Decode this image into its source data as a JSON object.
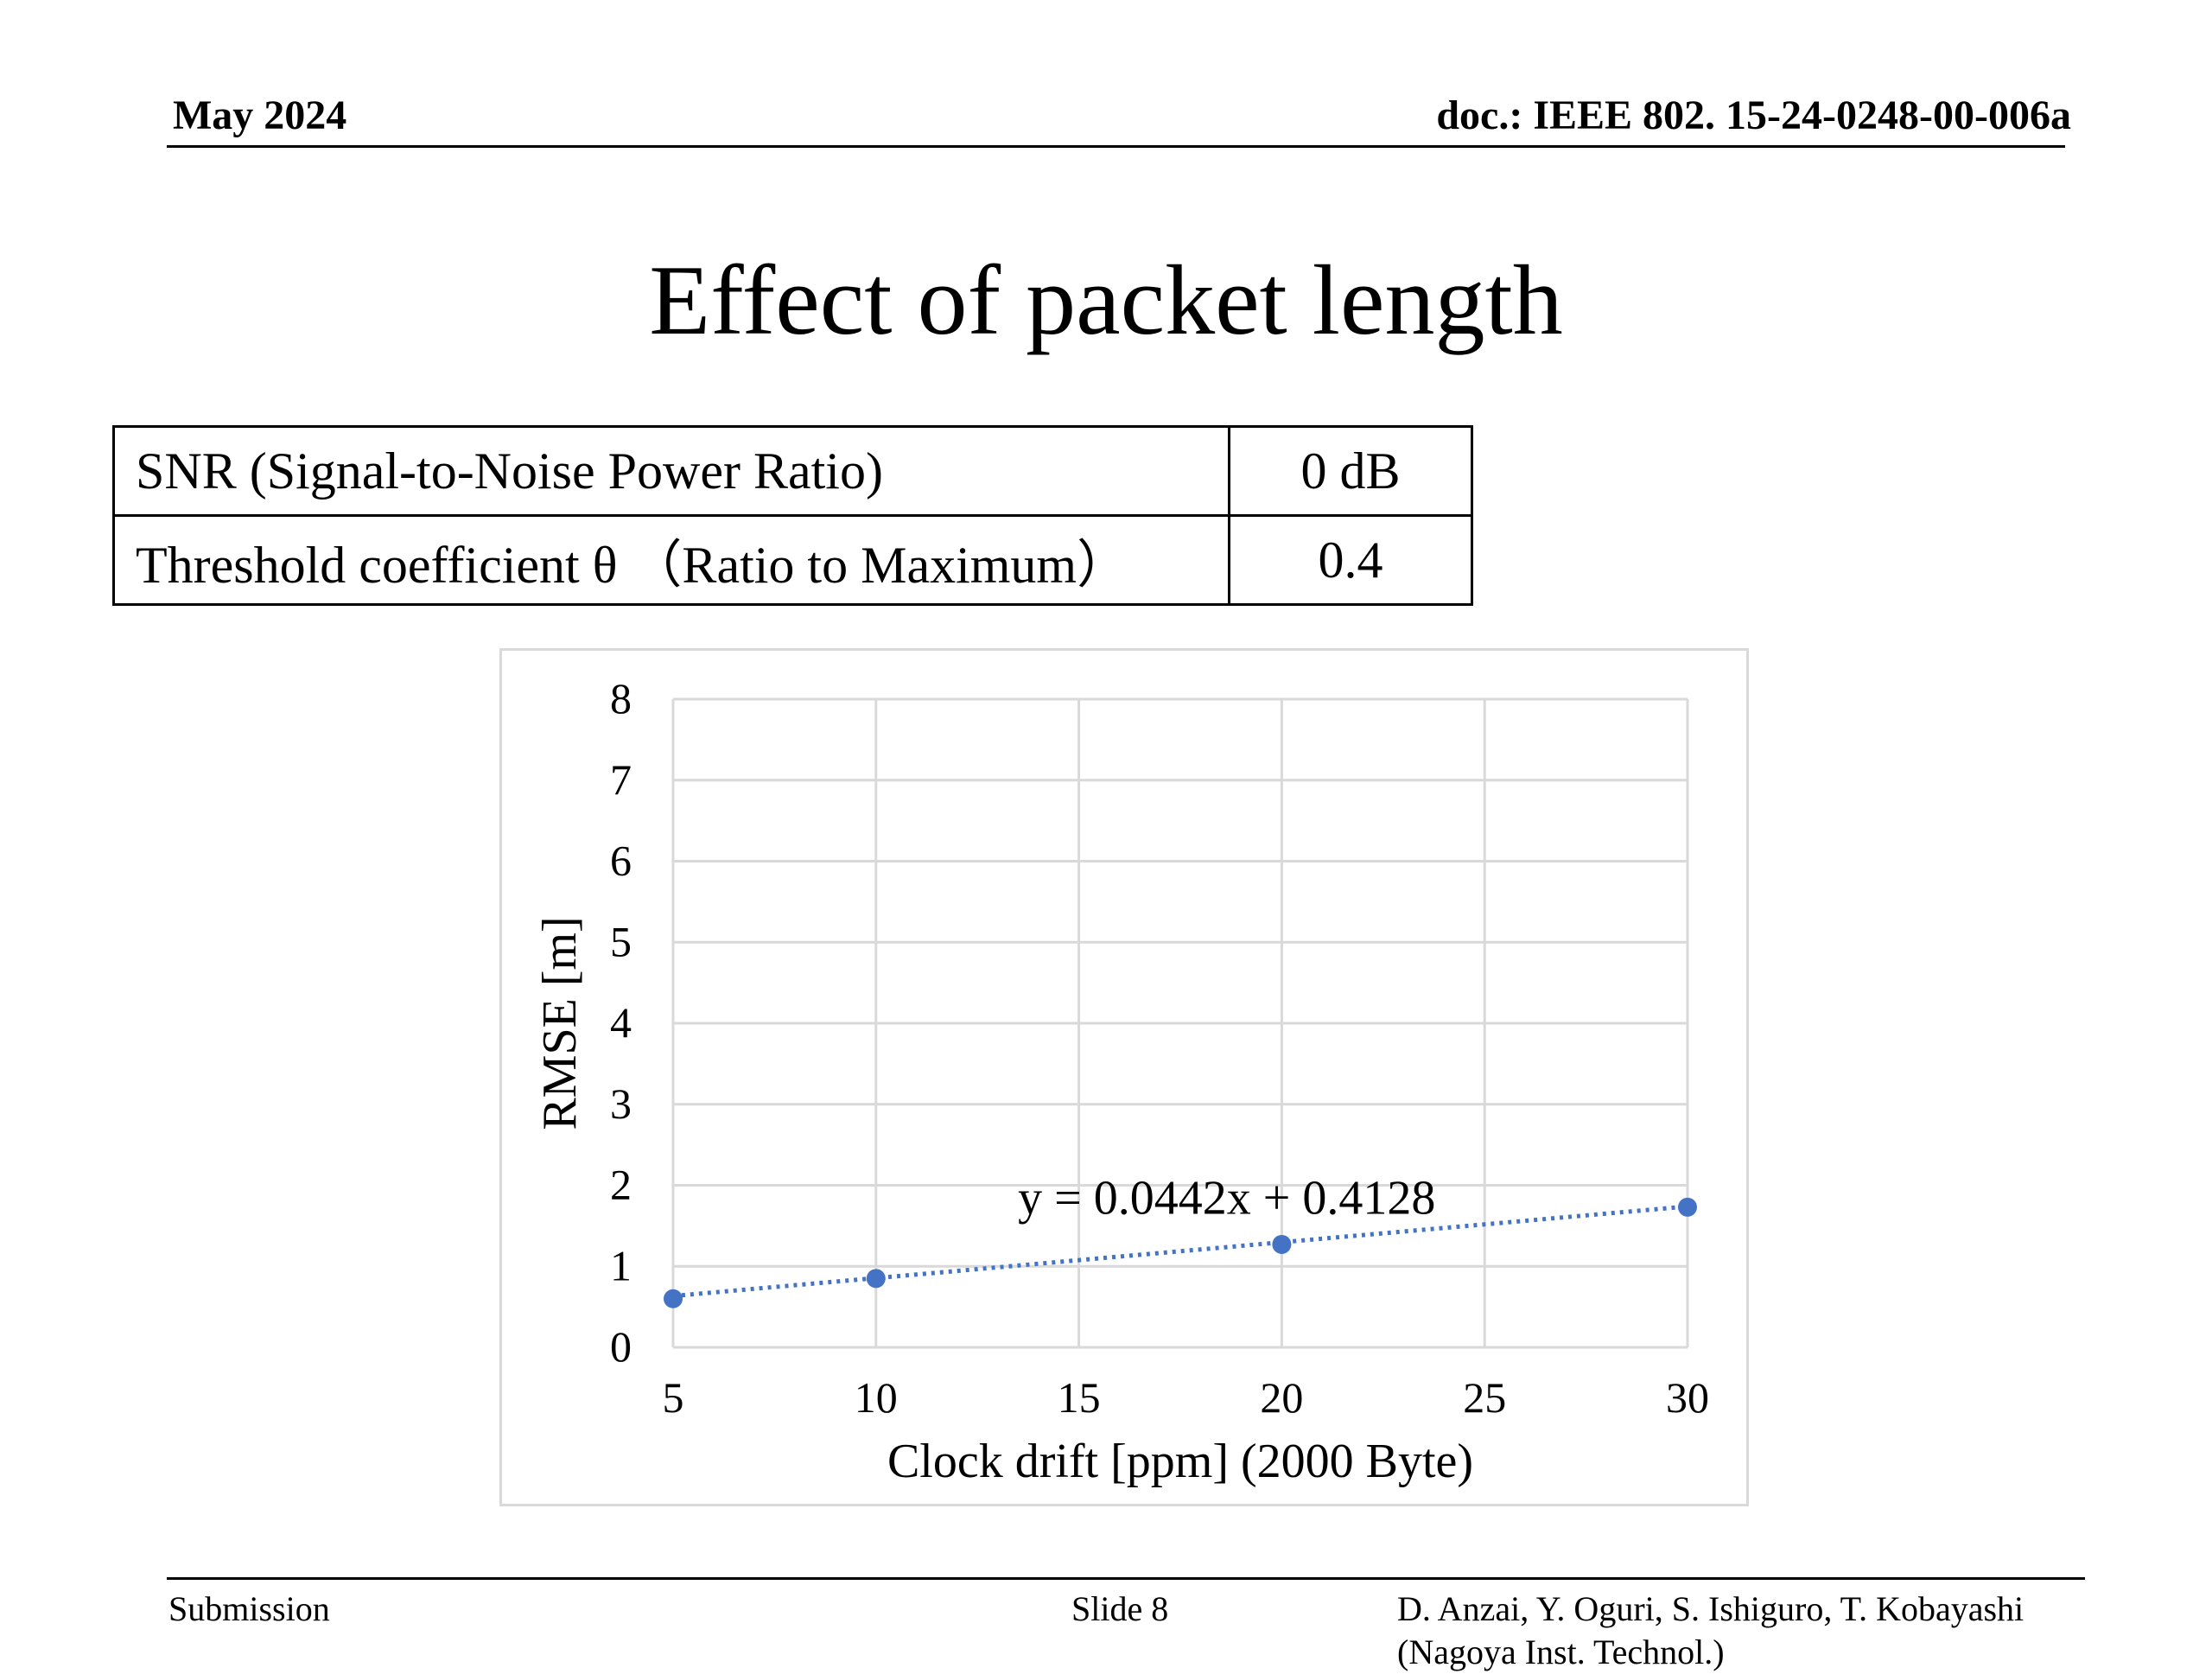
{
  "header": {
    "date": "May 2024",
    "doc": "doc.: IEEE 802. 15-24-0248-00-006a"
  },
  "title": "Effect of packet length",
  "params_table": [
    {
      "label": "SNR (Signal-to-Noise Power Ratio)",
      "value": "0 dB"
    },
    {
      "label": "Threshold coefficient θ （Ratio to Maximum）",
      "value": "0.4"
    }
  ],
  "chart_data": {
    "type": "scatter",
    "title": "",
    "xlabel": "Clock drift [ppm]  (2000 Byte)",
    "ylabel": "RMSE [m]",
    "xlim": [
      5,
      30
    ],
    "ylim": [
      0,
      8
    ],
    "x_ticks": [
      5,
      10,
      15,
      20,
      25,
      30
    ],
    "y_ticks": [
      0,
      1,
      2,
      3,
      4,
      5,
      6,
      7,
      8
    ],
    "grid": true,
    "series": [
      {
        "x": [
          5,
          10,
          20,
          30
        ],
        "y": [
          0.6,
          0.85,
          1.27,
          1.73
        ],
        "color": "#4472c4"
      }
    ],
    "trendline": {
      "slope": 0.0442,
      "intercept": 0.4128,
      "style": "dotted",
      "color": "#4472c4"
    },
    "annotation": "y = 0.0442x + 0.4128"
  },
  "footer": {
    "left": "Submission",
    "center": "Slide 8",
    "authors": "D. Anzai, Y. Oguri, S. Ishiguro,  T. Kobayashi",
    "affiliation": "(Nagoya Inst. Technol.)"
  }
}
